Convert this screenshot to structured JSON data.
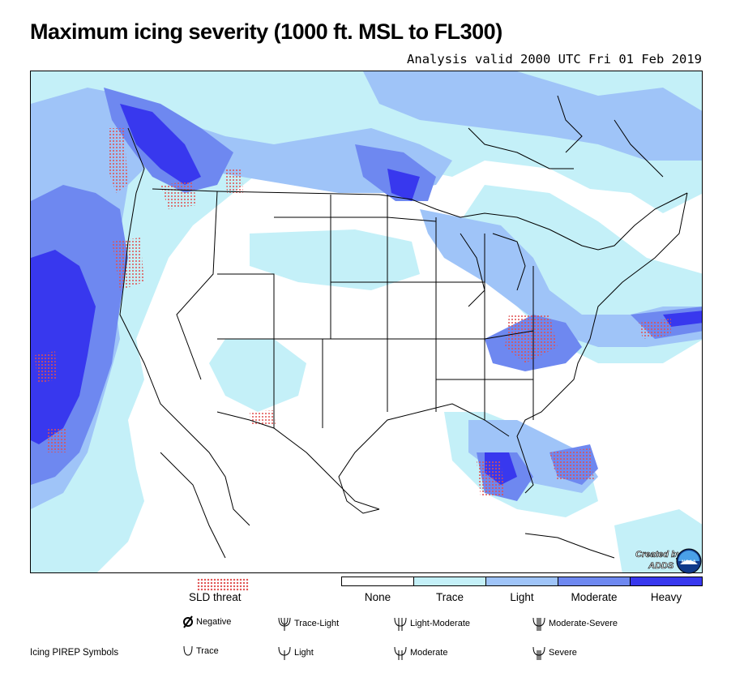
{
  "title": "Maximum icing severity (1000 ft. MSL to FL300)",
  "subtitle": "Analysis valid 2000 UTC Fri 01 Feb 2019",
  "logo": {
    "text_line1": "Created by",
    "text_line2": "ADDS",
    "seal_text": "NOAA"
  },
  "sld_label": "SLD threat",
  "severity_legend": [
    {
      "label": "None",
      "color": "#ffffff"
    },
    {
      "label": "Trace",
      "color": "#c4f0f8"
    },
    {
      "label": "Light",
      "color": "#9fc4f8"
    },
    {
      "label": "Moderate",
      "color": "#6e88f0"
    },
    {
      "label": "Heavy",
      "color": "#3838ee"
    }
  ],
  "colors": {
    "trace": "#c4f0f8",
    "light": "#9fc4f8",
    "moderate": "#6e88f0",
    "heavy": "#3838ee",
    "sld": "#e05050"
  },
  "pirep": {
    "title": "Icing PIREP Symbols",
    "symbols": [
      {
        "label": "Negative",
        "icon": "negative-icon"
      },
      {
        "label": "Trace-Light",
        "icon": "trace-light-icon"
      },
      {
        "label": "Light-Moderate",
        "icon": "light-moderate-icon"
      },
      {
        "label": "Moderate-Severe",
        "icon": "moderate-severe-icon"
      },
      {
        "label": "Trace",
        "icon": "trace-icon"
      },
      {
        "label": "Light",
        "icon": "light-icon"
      },
      {
        "label": "Moderate",
        "icon": "moderate-icon"
      },
      {
        "label": "Severe",
        "icon": "severe-icon"
      }
    ]
  }
}
